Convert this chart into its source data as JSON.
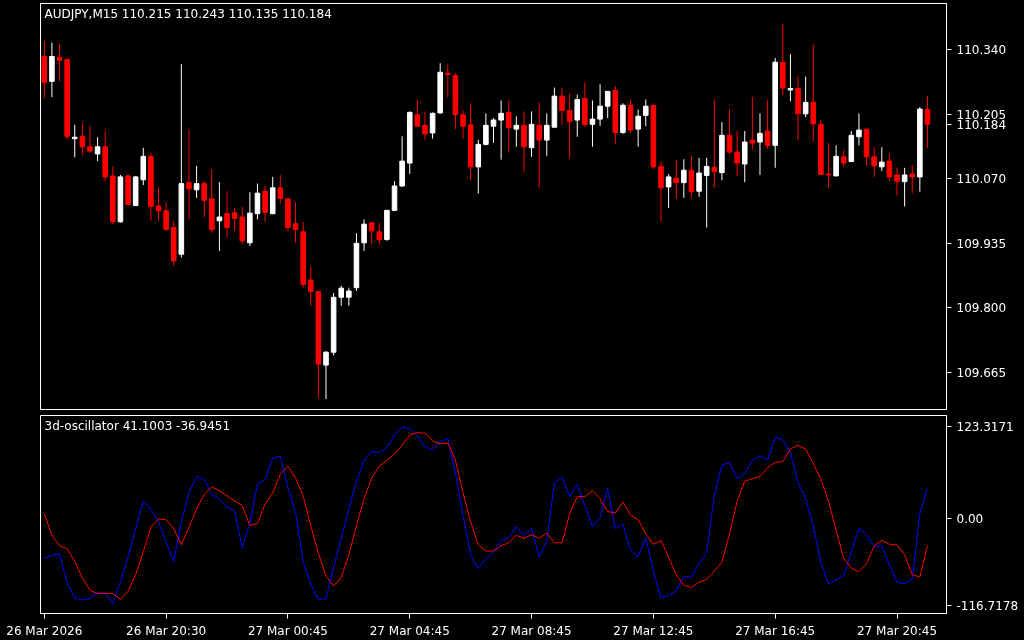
{
  "chart_data": [
    {
      "type": "candlestick",
      "title": "AUDJPY,M15  110.215 110.243 110.135 110.184",
      "tick_labels": "y",
      "grid": false,
      "categories": [
        null,
        null,
        null,
        null,
        null,
        null,
        null,
        null,
        null,
        null,
        null,
        null,
        null,
        null,
        null,
        null,
        null,
        null,
        null,
        null,
        null,
        null,
        null,
        null,
        null,
        null,
        null,
        null,
        null,
        null,
        null,
        null,
        null,
        null,
        null,
        null,
        null,
        null,
        null,
        null,
        null,
        null,
        null,
        null,
        null,
        null,
        null,
        null,
        null,
        null,
        null,
        null,
        null,
        null,
        null,
        null,
        null,
        null,
        null,
        null,
        null,
        null,
        null,
        null,
        null,
        null,
        null,
        null,
        null,
        null,
        null,
        null,
        null,
        null,
        null,
        null,
        null,
        null,
        null,
        null,
        null,
        null,
        null,
        null,
        null,
        null,
        null,
        null,
        null,
        null,
        null,
        null,
        null,
        null,
        null,
        null,
        null,
        null,
        null,
        null,
        null,
        null,
        null,
        null,
        null,
        null,
        null,
        null,
        null,
        null,
        null,
        null,
        null,
        null,
        null,
        null,
        null
      ],
      "ohlc": [
        [
          110.326,
          110.359,
          110.239,
          110.272
        ],
        [
          110.274,
          110.355,
          110.241,
          110.326
        ],
        [
          110.324,
          110.353,
          110.274,
          110.318
        ],
        [
          110.32,
          110.32,
          110.152,
          110.159
        ],
        [
          110.154,
          110.183,
          110.115,
          110.157
        ],
        [
          110.159,
          110.186,
          110.119,
          110.137
        ],
        [
          110.137,
          110.18,
          110.124,
          110.128
        ],
        [
          110.122,
          110.157,
          110.107,
          110.137
        ],
        [
          110.137,
          110.17,
          110.065,
          110.074
        ],
        [
          110.076,
          110.096,
          109.975,
          109.98
        ],
        [
          109.98,
          110.078,
          109.978,
          110.074
        ],
        [
          110.076,
          110.079,
          110.015,
          110.016
        ],
        [
          110.014,
          110.076,
          110.014,
          110.074
        ],
        [
          110.068,
          110.135,
          110.057,
          110.117
        ],
        [
          110.117,
          110.124,
          109.982,
          110.012
        ],
        [
          110.013,
          110.053,
          109.982,
          110.003
        ],
        [
          110.003,
          110.02,
          109.961,
          109.964
        ],
        [
          109.968,
          109.982,
          109.888,
          109.898
        ],
        [
          109.912,
          110.31,
          109.905,
          110.06
        ],
        [
          110.062,
          110.174,
          109.985,
          110.049
        ],
        [
          110.047,
          110.097,
          110.03,
          110.06
        ],
        [
          110.06,
          110.065,
          109.99,
          110.025
        ],
        [
          110.028,
          110.09,
          109.957,
          109.964
        ],
        [
          109.982,
          110.063,
          109.919,
          109.99
        ],
        [
          109.997,
          110.044,
          109.947,
          109.968
        ],
        [
          109.999,
          110.009,
          109.961,
          109.987
        ],
        [
          109.99,
          110.011,
          109.933,
          109.94
        ],
        [
          109.936,
          110.042,
          109.929,
          109.998
        ],
        [
          109.997,
          110.06,
          109.985,
          110.04
        ],
        [
          110.044,
          110.055,
          109.98,
          110.0
        ],
        [
          109.997,
          110.074,
          109.996,
          110.051
        ],
        [
          110.051,
          110.078,
          110.018,
          110.029
        ],
        [
          110.028,
          110.03,
          109.961,
          109.968
        ],
        [
          109.976,
          110.021,
          109.936,
          109.964
        ],
        [
          109.959,
          109.98,
          109.842,
          109.849
        ],
        [
          109.858,
          109.886,
          109.804,
          109.834
        ],
        [
          109.834,
          109.834,
          109.611,
          109.682
        ],
        [
          109.68,
          109.709,
          109.609,
          109.707
        ],
        [
          109.707,
          109.831,
          109.7,
          109.822
        ],
        [
          109.822,
          109.846,
          109.804,
          109.841
        ],
        [
          109.822,
          109.842,
          109.804,
          109.835
        ],
        [
          109.842,
          109.956,
          109.835,
          109.935
        ],
        [
          109.936,
          109.985,
          109.919,
          109.975
        ],
        [
          109.978,
          109.978,
          109.933,
          109.961
        ],
        [
          109.959,
          109.978,
          109.933,
          109.943
        ],
        [
          109.943,
          110.004,
          109.94,
          110.004
        ],
        [
          110.004,
          110.065,
          110.003,
          110.055
        ],
        [
          110.055,
          110.159,
          110.053,
          110.107
        ],
        [
          110.103,
          110.211,
          110.08,
          110.209
        ],
        [
          110.204,
          110.236,
          110.178,
          110.18
        ],
        [
          110.182,
          110.211,
          110.152,
          110.164
        ],
        [
          110.166,
          110.209,
          110.154,
          110.207
        ],
        [
          110.208,
          110.312,
          110.206,
          110.293
        ],
        [
          110.291,
          110.309,
          110.241,
          110.288
        ],
        [
          110.286,
          110.291,
          110.174,
          110.204
        ],
        [
          110.204,
          110.213,
          110.154,
          110.18
        ],
        [
          110.183,
          110.228,
          110.067,
          110.095
        ],
        [
          110.095,
          110.152,
          110.039,
          110.142
        ],
        [
          110.142,
          110.207,
          110.14,
          110.182
        ],
        [
          110.18,
          110.197,
          110.145,
          110.193
        ],
        [
          110.193,
          110.234,
          110.11,
          110.207
        ],
        [
          110.209,
          110.234,
          110.126,
          110.177
        ],
        [
          110.174,
          110.201,
          110.137,
          110.182
        ],
        [
          110.182,
          110.211,
          110.085,
          110.137
        ],
        [
          110.135,
          110.211,
          110.116,
          110.184
        ],
        [
          110.182,
          110.23,
          110.051,
          110.151
        ],
        [
          110.151,
          110.207,
          110.118,
          110.182
        ],
        [
          110.178,
          110.261,
          110.178,
          110.243
        ],
        [
          110.243,
          110.261,
          110.183,
          110.213
        ],
        [
          110.213,
          110.249,
          110.114,
          110.19
        ],
        [
          110.193,
          110.246,
          110.158,
          110.236
        ],
        [
          110.238,
          110.272,
          110.179,
          110.183
        ],
        [
          110.184,
          110.234,
          110.137,
          110.195
        ],
        [
          110.195,
          110.268,
          110.181,
          110.222
        ],
        [
          110.222,
          110.253,
          110.197,
          110.253
        ],
        [
          110.255,
          110.264,
          110.143,
          110.167
        ],
        [
          110.167,
          110.228,
          110.164,
          110.224
        ],
        [
          110.224,
          110.236,
          110.166,
          110.172
        ],
        [
          110.174,
          110.215,
          110.137,
          110.201
        ],
        [
          110.203,
          110.236,
          110.18,
          110.222
        ],
        [
          110.224,
          110.224,
          110.091,
          110.095
        ],
        [
          110.096,
          110.107,
          109.98,
          110.051
        ],
        [
          110.053,
          110.08,
          110.009,
          110.074
        ],
        [
          110.071,
          110.11,
          110.028,
          110.062
        ],
        [
          110.062,
          110.111,
          110.03,
          110.088
        ],
        [
          110.088,
          110.118,
          110.03,
          110.043
        ],
        [
          110.044,
          110.114,
          110.032,
          110.082
        ],
        [
          110.077,
          110.114,
          109.968,
          110.096
        ],
        [
          110.094,
          110.236,
          110.051,
          110.085
        ],
        [
          110.083,
          110.189,
          110.067,
          110.161
        ],
        [
          110.161,
          110.215,
          110.122,
          110.126
        ],
        [
          110.126,
          110.17,
          110.076,
          110.103
        ],
        [
          110.101,
          110.17,
          110.063,
          110.147
        ],
        [
          110.151,
          110.241,
          110.131,
          110.145
        ],
        [
          110.147,
          110.207,
          110.078,
          110.165
        ],
        [
          110.17,
          110.236,
          110.133,
          110.14
        ],
        [
          110.14,
          110.323,
          110.093,
          110.314
        ],
        [
          110.314,
          110.394,
          110.245,
          110.26
        ],
        [
          110.256,
          110.331,
          110.232,
          110.259
        ],
        [
          110.259,
          110.284,
          110.151,
          110.206
        ],
        [
          110.206,
          110.284,
          110.199,
          110.23
        ],
        [
          110.23,
          110.351,
          110.149,
          110.185
        ],
        [
          110.184,
          110.193,
          110.078,
          110.079
        ],
        [
          110.08,
          110.145,
          110.051,
          110.078
        ],
        [
          110.076,
          110.14,
          110.076,
          110.117
        ],
        [
          110.116,
          110.13,
          110.095,
          110.103
        ],
        [
          110.106,
          110.17,
          110.106,
          110.161
        ],
        [
          110.158,
          110.207,
          110.14,
          110.172
        ],
        [
          110.174,
          110.174,
          110.097,
          110.116
        ],
        [
          110.116,
          110.136,
          110.074,
          110.097
        ],
        [
          110.095,
          110.136,
          110.086,
          110.105
        ],
        [
          110.107,
          110.122,
          110.065,
          110.074
        ],
        [
          110.078,
          110.093,
          110.035,
          110.065
        ],
        [
          110.064,
          110.093,
          110.012,
          110.078
        ],
        [
          110.08,
          110.099,
          110.039,
          110.074
        ],
        [
          110.074,
          110.22,
          110.043,
          110.216
        ],
        [
          110.215,
          110.243,
          110.135,
          110.184
        ]
      ],
      "colors": [
        "#ff0000",
        "#ffffff",
        "#ff0000",
        "#ff0000",
        "#ffffff",
        "#ff0000",
        "#ff0000",
        "#ffffff",
        "#ff0000",
        "#ff0000",
        "#ffffff",
        "#ff0000",
        "#ffffff",
        "#ffffff",
        "#ff0000",
        "#ff0000",
        "#ff0000",
        "#ff0000",
        "#ffffff",
        "#ff0000",
        "#ffffff",
        "#ff0000",
        "#ff0000",
        "#ffffff",
        "#ff0000",
        "#ff0000",
        "#ff0000",
        "#ffffff",
        "#ffffff",
        "#ff0000",
        "#ffffff",
        "#ff0000",
        "#ff0000",
        "#ff0000",
        "#ff0000",
        "#ff0000",
        "#ff0000",
        "#ffffff",
        "#ffffff",
        "#ffffff",
        "#ffffff",
        "#ffffff",
        "#ffffff",
        "#ff0000",
        "#ff0000",
        "#ffffff",
        "#ffffff",
        "#ffffff",
        "#ffffff",
        "#ff0000",
        "#ff0000",
        "#ffffff",
        "#ffffff",
        "#ff0000",
        "#ff0000",
        "#ff0000",
        "#ff0000",
        "#ffffff",
        "#ffffff",
        "#ffffff",
        "#ffffff",
        "#ff0000",
        "#ffffff",
        "#ff0000",
        "#ffffff",
        "#ff0000",
        "#ffffff",
        "#ffffff",
        "#ff0000",
        "#ff0000",
        "#ffffff",
        "#ff0000",
        "#ffffff",
        "#ffffff",
        "#ffffff",
        "#ff0000",
        "#ffffff",
        "#ff0000",
        "#ffffff",
        "#ffffff",
        "#ff0000",
        "#ff0000",
        "#ffffff",
        "#ff0000",
        "#ffffff",
        "#ff0000",
        "#ffffff",
        "#ffffff",
        "#ff0000",
        "#ffffff",
        "#ff0000",
        "#ff0000",
        "#ffffff",
        "#ff0000",
        "#ffffff",
        "#ff0000",
        "#ffffff",
        "#ff0000",
        "#ffffff",
        "#ff0000",
        "#ffffff",
        "#ff0000",
        "#ff0000",
        "#ff0000",
        "#ffffff",
        "#ff0000",
        "#ffffff",
        "#ffffff",
        "#ff0000",
        "#ff0000",
        "#ffffff",
        "#ff0000",
        "#ff0000",
        "#ffffff",
        "#ff0000",
        "#ffffff",
        "#ff0000"
      ],
      "ylim": [
        109.587,
        110.437
      ],
      "yticks": [
        {
          "value": 110.34,
          "label": "110.340"
        },
        {
          "value": 110.205,
          "label": "110.205"
        },
        {
          "value": 110.184,
          "label": "110.184"
        },
        {
          "value": 110.07,
          "label": "110.070"
        },
        {
          "value": 109.935,
          "label": "109.935"
        },
        {
          "value": 109.8,
          "label": "109.800"
        },
        {
          "value": 109.665,
          "label": "109.665"
        }
      ]
    },
    {
      "type": "line",
      "title": "3d-oscillator 41.1003 -36.9451",
      "grid": false,
      "categories": [
        "26 Mar 2026",
        null,
        null,
        null,
        null,
        null,
        null,
        null,
        null,
        null,
        null,
        null,
        null,
        null,
        null,
        null,
        "26 Mar 20:30",
        null,
        null,
        null,
        null,
        null,
        null,
        null,
        null,
        null,
        null,
        null,
        null,
        null,
        null,
        null,
        "27 Mar 00:45",
        null,
        null,
        null,
        null,
        null,
        null,
        null,
        null,
        null,
        null,
        null,
        null,
        null,
        null,
        null,
        "27 Mar 04:45",
        null,
        null,
        null,
        null,
        null,
        null,
        null,
        null,
        null,
        null,
        null,
        null,
        null,
        null,
        null,
        "27 Mar 08:45",
        null,
        null,
        null,
        null,
        null,
        null,
        null,
        null,
        null,
        null,
        null,
        null,
        null,
        null,
        null,
        "27 Mar 12:45",
        null,
        null,
        null,
        null,
        null,
        null,
        null,
        null,
        null,
        null,
        null,
        null,
        null,
        null,
        null,
        "27 Mar 16:45",
        null,
        null,
        null,
        null,
        null,
        null,
        null,
        null,
        null,
        null,
        null,
        null,
        null,
        null,
        null,
        "27 Mar 20:45",
        null,
        null,
        null,
        null
      ],
      "series": [
        {
          "color": "#0000ff",
          "values": [
            -54,
            -50,
            -47,
            -87,
            -107,
            -110,
            -108,
            -100,
            -101,
            -115,
            -85,
            -52,
            -14,
            23,
            12,
            -5,
            -32,
            -58,
            -5,
            34,
            56,
            52,
            32,
            26,
            15,
            10,
            -40,
            -7,
            46,
            52,
            81,
            83,
            41,
            8,
            -58,
            -89,
            -109,
            -108,
            -66,
            -27,
            12,
            50,
            78,
            90,
            88,
            95,
            112,
            123,
            120,
            111,
            96,
            92,
            103,
            107,
            61,
            4,
            -49,
            -68,
            -54,
            -45,
            -30,
            -26,
            -11,
            -23,
            -14,
            -52,
            -30,
            48,
            55,
            29,
            45,
            17,
            -11,
            1,
            40,
            -14,
            -8,
            -43,
            -52,
            -26,
            -71,
            -107,
            -104,
            -98,
            -78,
            -79,
            -61,
            -46,
            30,
            71,
            75,
            53,
            60,
            78,
            84,
            78,
            109,
            105,
            88,
            48,
            26,
            -10,
            -60,
            -88,
            -83,
            -78,
            -45,
            -14,
            -22,
            -38,
            -37,
            -63,
            -86,
            -88,
            -82,
            6,
            41
          ]
        },
        {
          "color": "#ff0000",
          "values": [
            6,
            -23,
            -37,
            -41,
            -58,
            -80,
            -97,
            -101,
            -101,
            -101,
            -109,
            -98,
            -76,
            -45,
            -12,
            -1,
            -2,
            -14,
            -36,
            -12,
            12,
            32,
            42,
            37,
            30,
            23,
            17,
            -10,
            -7,
            19,
            34,
            59,
            70,
            54,
            30,
            -10,
            -47,
            -78,
            -91,
            -80,
            -49,
            -10,
            26,
            54,
            70,
            78,
            86,
            98,
            112,
            115,
            114,
            104,
            100,
            101,
            78,
            34,
            -5,
            -36,
            -44,
            -44,
            -37,
            -33,
            -23,
            -27,
            -22,
            -27,
            -20,
            -33,
            -33,
            6,
            29,
            29,
            37,
            26,
            9,
            7,
            22,
            4,
            -2,
            -21,
            -35,
            -30,
            -52,
            -76,
            -90,
            -93,
            -86,
            -82,
            -71,
            -59,
            -21,
            23,
            50,
            53,
            56,
            68,
            75,
            76,
            93,
            98,
            93,
            74,
            52,
            23,
            -16,
            -54,
            -67,
            -72,
            -61,
            -37,
            -30,
            -35,
            -36,
            -49,
            -76,
            -79,
            -37
          ]
        }
      ],
      "ylim": [
        -128,
        138
      ],
      "yticks": [
        {
          "value": 123.3171,
          "label": "123.3171"
        },
        {
          "value": 0,
          "label": "0.00"
        },
        {
          "value": -116.7178,
          "label": "-116.7178"
        }
      ]
    }
  ]
}
